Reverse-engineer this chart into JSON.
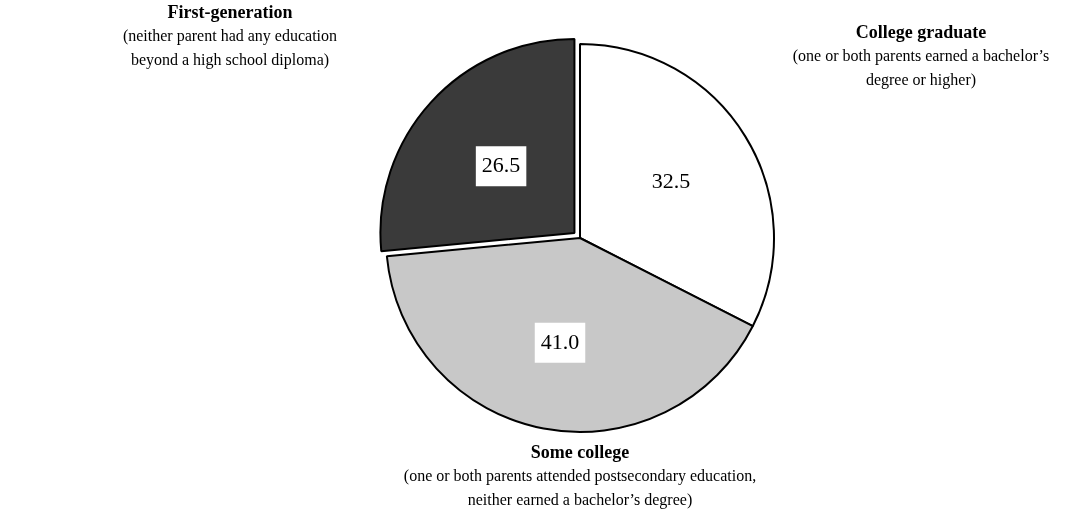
{
  "chart_data": {
    "type": "pie",
    "categories": [
      "College graduate",
      "Some college",
      "First-generation"
    ],
    "values": [
      32.5,
      41.0,
      26.5
    ],
    "colors": [
      "#ffffff",
      "#c8c8c8",
      "#3a3a3a"
    ],
    "value_labels": [
      "32.5",
      "41.0",
      "26.5"
    ],
    "annotations": [
      "(one or both parents earned a bachelor’s degree or higher)",
      "(one or both parents attended postsecondary education, neither earned a bachelor’s degree)",
      "(neither parent had any education beyond a high school diploma)"
    ],
    "legend": false
  }
}
